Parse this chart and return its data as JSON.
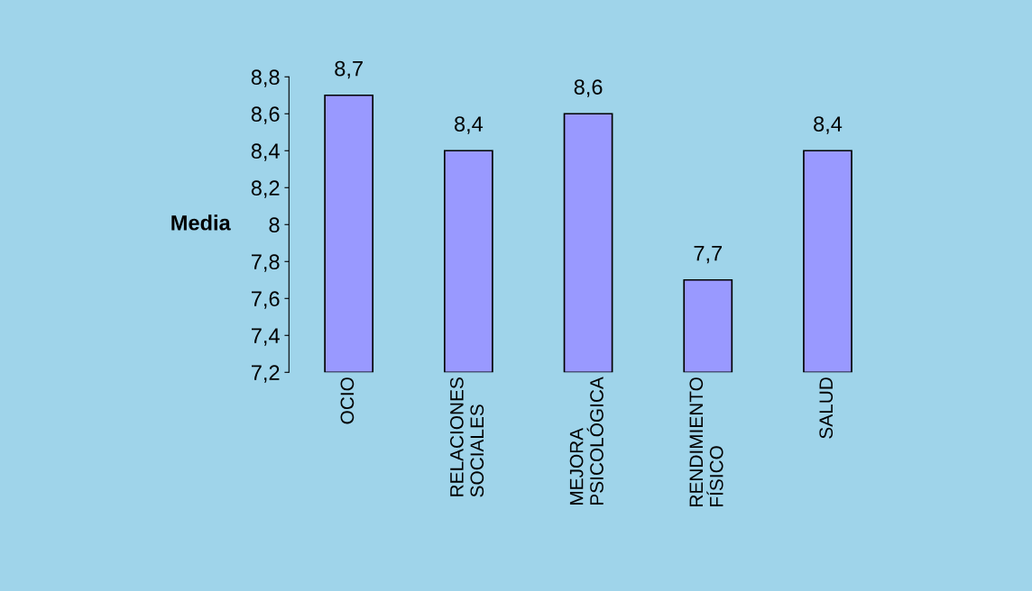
{
  "chart_data": {
    "type": "bar",
    "ylabel": "Media",
    "categories": [
      "OCIO",
      "RELACIONES\nSOCIALES",
      "MEJORA\nPSICOLÓGICA",
      "RENDIMIENTO\nFÍSICO",
      "SALUD"
    ],
    "values": [
      8.7,
      8.4,
      8.6,
      7.7,
      8.4
    ],
    "value_labels": [
      "8,7",
      "8,4",
      "8,6",
      "7,7",
      "8,4"
    ],
    "color": "#9999ff",
    "ylim": [
      7.2,
      8.8
    ],
    "yticks": [
      {
        "value": 7.2,
        "label": "7,2"
      },
      {
        "value": 7.4,
        "label": "7,4"
      },
      {
        "value": 7.6,
        "label": "7,6"
      },
      {
        "value": 7.8,
        "label": "7,8"
      },
      {
        "value": 8,
        "label": "8"
      },
      {
        "value": 8.2,
        "label": "8,2"
      },
      {
        "value": 8.4,
        "label": "8,4"
      },
      {
        "value": 8.6,
        "label": "8,6"
      },
      {
        "value": 8.8,
        "label": "8,8"
      }
    ],
    "grid": false,
    "legend": false
  }
}
